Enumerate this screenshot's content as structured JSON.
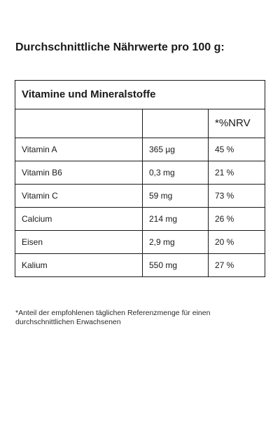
{
  "page": {
    "title": "Durchschnittliche Nährwerte pro 100 g:"
  },
  "table": {
    "section_title": "Vitamine und Mineralstoffe",
    "headers": {
      "name": "",
      "amount": "",
      "nrv": "*%NRV"
    },
    "rows": [
      {
        "name": "Vitamin A",
        "amount": "365 µg",
        "nrv": "45 %"
      },
      {
        "name": "Vitamin B6",
        "amount": "0,3 mg",
        "nrv": "21 %"
      },
      {
        "name": "Vitamin C",
        "amount": "59 mg",
        "nrv": "73 %"
      },
      {
        "name": "Calcium",
        "amount": "214 mg",
        "nrv": "26 %"
      },
      {
        "name": "Eisen",
        "amount": "2,9 mg",
        "nrv": "20 %"
      },
      {
        "name": "Kalium",
        "amount": "550 mg",
        "nrv": "27 %"
      }
    ]
  },
  "footnote": "*Anteil der empfohlenen täglichen Referenzmenge für einen durchschnittlichen Erwachsenen"
}
